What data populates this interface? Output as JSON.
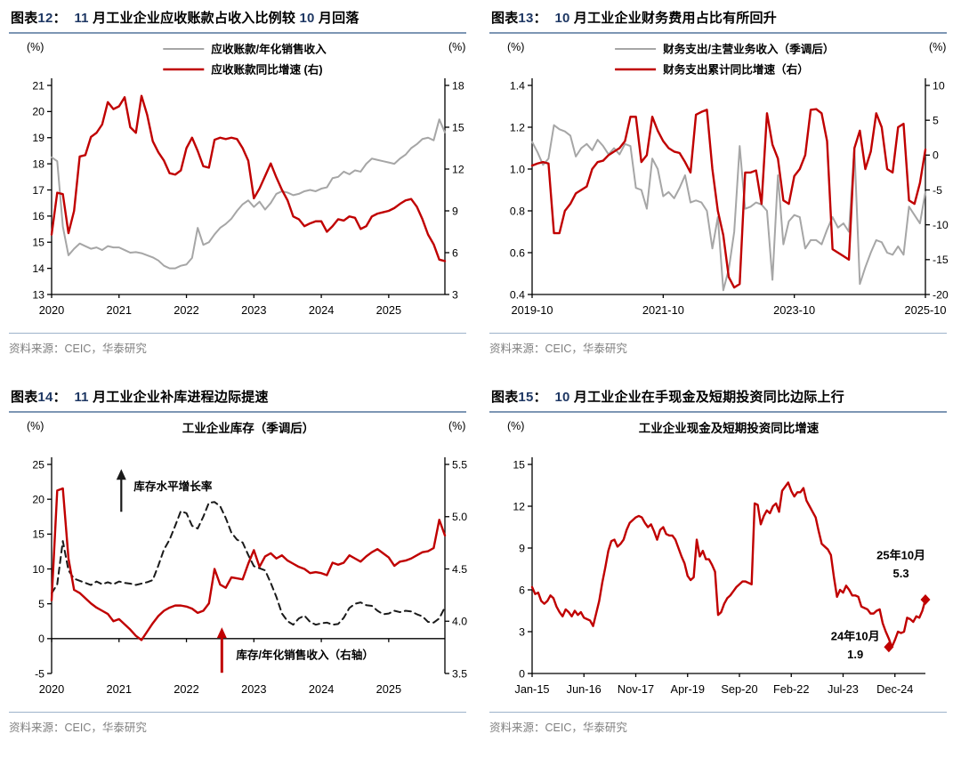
{
  "colors": {
    "red": "#c00000",
    "gray": "#a6a6a6",
    "dash_black": "#1a1a1a",
    "axis_black": "#000000",
    "title_number_blue": "#1f3864",
    "title_rule_blue": "#7d96b4",
    "source_rule_blue": "#9db2ca",
    "source_gray": "#7f7f7f"
  },
  "figures": [
    {
      "title": "图表12：  11 月工业企业应收账款占收入比例较 10 月回落",
      "source": "资料来源：CEIC，华泰研究"
    },
    {
      "title": "图表13：  10 月工业企业财务费用占比有所回升",
      "source": "资料来源：CEIC，华泰研究"
    },
    {
      "title": "图表14：  11 月工业企业补库进程边际提速",
      "source": "资料来源：CEIC，华泰研究"
    },
    {
      "title": "图表15：  10 月工业企业在手现金及短期投资同比边际上行",
      "source": "资料来源：CEIC，华泰研究"
    }
  ],
  "chart_data": [
    {
      "type": "line",
      "title": "11 月工业企业应收账款占收入比例较 10 月回落",
      "inner_title": "",
      "left_unit": "(%)",
      "right_unit": "(%)",
      "show_legend": true,
      "legend_position": "top-center",
      "left_axis": {
        "min": 13,
        "max": 21,
        "ticks": [
          13,
          14,
          15,
          16,
          17,
          18,
          19,
          20,
          21
        ],
        "labels": [
          "13",
          "14",
          "15",
          "16",
          "17",
          "18",
          "19",
          "20",
          "21"
        ]
      },
      "right_axis": {
        "min": 3,
        "max": 18,
        "ticks": [
          3,
          6,
          9,
          12,
          15,
          18
        ],
        "labels": [
          "3",
          "6",
          "9",
          "12",
          "15",
          "18"
        ]
      },
      "x_axis": {
        "min": 0,
        "max": 70,
        "baseline": 13,
        "tick_positions": [
          0,
          12,
          24,
          36,
          48,
          60
        ],
        "tick_labels": [
          "2020",
          "2021",
          "2022",
          "2023",
          "2024",
          "2025"
        ]
      },
      "series": [
        {
          "id": "receivables-to-sales-line",
          "name": "应收账款/年化销售收入",
          "axis": "left",
          "color": "gray",
          "width": 2,
          "dash": "",
          "values": [
            18.25,
            18.1,
            15.6,
            14.5,
            14.75,
            14.95,
            14.85,
            14.75,
            14.8,
            14.7,
            14.85,
            14.8,
            14.8,
            14.7,
            14.6,
            14.62,
            14.58,
            14.5,
            14.42,
            14.3,
            14.1,
            14.0,
            14.0,
            14.1,
            14.15,
            14.4,
            15.55,
            14.9,
            15.0,
            15.3,
            15.55,
            15.7,
            15.9,
            16.2,
            16.45,
            16.6,
            16.35,
            16.55,
            16.25,
            16.5,
            16.85,
            16.95,
            16.9,
            16.8,
            16.85,
            16.95,
            17.0,
            16.95,
            17.05,
            17.1,
            17.45,
            17.5,
            17.7,
            17.6,
            17.75,
            17.7,
            18.0,
            18.2,
            18.15,
            18.1,
            18.05,
            18.0,
            18.2,
            18.35,
            18.6,
            18.75,
            18.95,
            19.0,
            18.9,
            19.7,
            19.2
          ]
        },
        {
          "id": "receivables-yoy-line",
          "name": "应收账款同比增速 (右)",
          "axis": "right",
          "color": "red",
          "width": 2.4,
          "dash": "",
          "values": [
            7.3,
            10.3,
            10.2,
            7.4,
            9.0,
            12.9,
            13.0,
            14.3,
            14.6,
            15.2,
            16.8,
            16.3,
            16.5,
            17.15,
            15.0,
            14.6,
            17.25,
            15.9,
            14.0,
            13.2,
            12.6,
            11.7,
            11.6,
            11.9,
            13.5,
            14.25,
            13.3,
            12.2,
            12.1,
            14.1,
            14.25,
            14.15,
            14.25,
            14.15,
            13.5,
            12.6,
            9.9,
            10.6,
            11.5,
            12.4,
            11.4,
            10.5,
            9.75,
            8.6,
            8.4,
            7.9,
            8.1,
            8.25,
            8.25,
            7.5,
            7.9,
            8.4,
            8.3,
            8.6,
            8.5,
            7.7,
            7.9,
            8.6,
            8.8,
            8.9,
            9.0,
            9.2,
            9.5,
            9.75,
            9.85,
            9.3,
            8.4,
            7.3,
            6.6,
            5.5,
            5.4
          ]
        }
      ],
      "annotations": []
    },
    {
      "type": "line",
      "title": "10 月工业企业财务费用占比有所回升",
      "inner_title": "",
      "left_unit": "(%)",
      "right_unit": "(%)",
      "show_legend": true,
      "legend_position": "top-center",
      "left_axis": {
        "min": 0.4,
        "max": 1.4,
        "ticks": [
          0.4,
          0.6,
          0.8,
          1.0,
          1.2,
          1.4
        ],
        "labels": [
          "0.4",
          "0.6",
          "0.8",
          "1.0",
          "1.2",
          "1.4"
        ]
      },
      "right_axis": {
        "min": -20,
        "max": 10,
        "ticks": [
          -20,
          -15,
          -10,
          -5,
          0,
          5,
          10
        ],
        "labels": [
          "-20",
          "-15",
          "-10",
          "-5",
          "0",
          "5",
          "10"
        ]
      },
      "x_axis": {
        "min": 0,
        "max": 72,
        "baseline": 0.4,
        "tick_positions": [
          0,
          24,
          48,
          72
        ],
        "tick_labels": [
          "2019-10",
          "2021-10",
          "2023-10",
          "2025-10"
        ]
      },
      "series": [
        {
          "id": "finance-expense-ratio-line",
          "name": "财务支出/主营业务收入（季调后）",
          "axis": "left",
          "color": "gray",
          "width": 2,
          "dash": "",
          "values": [
            1.13,
            1.08,
            1.02,
            1.05,
            1.21,
            1.19,
            1.18,
            1.16,
            1.06,
            1.1,
            1.12,
            1.09,
            1.14,
            1.11,
            1.07,
            1.1,
            1.07,
            1.12,
            1.11,
            0.91,
            0.9,
            0.81,
            1.05,
            1.0,
            0.87,
            0.89,
            0.86,
            0.91,
            0.97,
            0.84,
            0.85,
            0.84,
            0.8,
            0.62,
            0.77,
            0.42,
            0.52,
            0.7,
            1.11,
            0.81,
            0.82,
            0.84,
            0.83,
            0.8,
            0.47,
            0.97,
            0.64,
            0.75,
            0.78,
            0.77,
            0.62,
            0.66,
            0.66,
            0.64,
            0.71,
            0.77,
            0.72,
            0.74,
            0.7,
            1.1,
            0.45,
            0.53,
            0.6,
            0.66,
            0.65,
            0.6,
            0.59,
            0.63,
            0.59,
            0.82,
            0.78,
            0.74,
            0.89
          ]
        },
        {
          "id": "finance-expense-yoy-line",
          "name": "财务支出累计同比增速（右）",
          "axis": "right",
          "color": "red",
          "width": 2.4,
          "dash": "",
          "values": [
            -1.5,
            -1.2,
            -1.0,
            -1.2,
            -11.2,
            -11.2,
            -8,
            -7,
            -5.5,
            -5,
            -4.5,
            -2,
            -1,
            -0.8,
            0,
            0.5,
            1,
            2,
            5.5,
            5.5,
            -1,
            0,
            5.5,
            3.5,
            2,
            1,
            0.5,
            0.3,
            -1,
            -2.5,
            5.8,
            6.2,
            6.5,
            -2,
            -8,
            -11.5,
            -17.5,
            -19,
            -18.5,
            -2.5,
            -2.5,
            -2.2,
            -7,
            6,
            1.5,
            -0.5,
            -6.5,
            -7,
            -3,
            -2,
            0,
            6.5,
            6.6,
            6,
            2,
            -13.5,
            -14,
            -14.5,
            -15,
            1,
            3.5,
            -2,
            0.5,
            6,
            4,
            -2,
            -2.5,
            4,
            4.5,
            -6.5,
            -7,
            -4,
            0.8
          ]
        }
      ],
      "annotations": []
    },
    {
      "type": "line",
      "title": "11 月工业企业补库进程边际提速",
      "inner_title": "工业企业库存（季调后）",
      "left_unit": "(%)",
      "right_unit": "(%)",
      "show_legend": false,
      "legend_position": "none",
      "left_axis": {
        "min": -5,
        "max": 25,
        "ticks": [
          -5,
          0,
          5,
          10,
          15,
          20,
          25
        ],
        "labels": [
          "-5",
          "0",
          "5",
          "10",
          "15",
          "20",
          "25"
        ]
      },
      "right_axis": {
        "min": 3.5,
        "max": 5.5,
        "ticks": [
          3.5,
          4.0,
          4.5,
          5.0,
          5.5
        ],
        "labels": [
          "3.5",
          "4.0",
          "4.5",
          "5.0",
          "5.5"
        ]
      },
      "x_axis": {
        "min": 0,
        "max": 70,
        "baseline": 0,
        "tick_positions": [
          0,
          12,
          24,
          36,
          48,
          60
        ],
        "tick_labels": [
          "2020",
          "2021",
          "2022",
          "2023",
          "2024",
          "2025"
        ]
      },
      "series": [
        {
          "id": "inventory-growth-line",
          "name": "库存水平增长率",
          "axis": "left",
          "color": "dash_black",
          "width": 2,
          "dash": "7,5",
          "values": [
            6.5,
            7.8,
            14.0,
            9.8,
            8.6,
            8.3,
            8.0,
            7.7,
            8.2,
            7.8,
            8.1,
            7.8,
            8.2,
            8.0,
            7.9,
            7.7,
            7.9,
            8.1,
            8.4,
            10.5,
            12.8,
            14.2,
            16.2,
            18.3,
            18.0,
            16.2,
            15.8,
            17.5,
            19.5,
            19.6,
            19.0,
            17.3,
            15.2,
            14.2,
            13.8,
            12.0,
            10.4,
            10.1,
            9.8,
            8.0,
            6.0,
            3.6,
            2.5,
            2.0,
            2.9,
            3.3,
            2.4,
            2.0,
            2.2,
            2.3,
            2.0,
            2.1,
            3.0,
            4.4,
            5.0,
            5.2,
            4.8,
            4.7,
            4.0,
            3.5,
            3.6,
            4.0,
            3.8,
            4.0,
            3.9,
            3.5,
            3.2,
            2.4,
            2.3,
            2.9,
            4.5
          ]
        },
        {
          "id": "inventory-to-sales-line",
          "name": "库存/年化销售收入（右轴）",
          "axis": "right",
          "color": "red",
          "width": 2.4,
          "dash": "",
          "values": [
            4.2,
            5.25,
            5.27,
            4.6,
            4.3,
            4.27,
            4.22,
            4.17,
            4.13,
            4.1,
            4.07,
            4.0,
            4.02,
            3.97,
            3.92,
            3.86,
            3.82,
            3.9,
            3.98,
            4.05,
            4.1,
            4.13,
            4.15,
            4.15,
            4.14,
            4.12,
            4.08,
            4.1,
            4.17,
            4.5,
            4.35,
            4.32,
            4.42,
            4.41,
            4.4,
            4.55,
            4.68,
            4.52,
            4.62,
            4.65,
            4.6,
            4.63,
            4.58,
            4.55,
            4.52,
            4.5,
            4.46,
            4.47,
            4.46,
            4.44,
            4.56,
            4.54,
            4.56,
            4.63,
            4.6,
            4.57,
            4.62,
            4.66,
            4.69,
            4.65,
            4.61,
            4.53,
            4.57,
            4.58,
            4.6,
            4.63,
            4.66,
            4.67,
            4.7,
            4.97,
            4.82
          ]
        }
      ],
      "annotations": [
        {
          "type": "arrow",
          "color": "dash_black",
          "x": 12.4,
          "y_from": 18.2,
          "y_to": 24.2,
          "width": 2.2,
          "label": "库存水平增长率",
          "label_dx": 14,
          "label_y": 21.3,
          "bold": false
        },
        {
          "type": "arrow",
          "color": "red",
          "x": 30.3,
          "y_from": -4.9,
          "y_to": 1.5,
          "width": 3,
          "label": "库存/年化销售收入（右轴）",
          "label_dx": 16,
          "label_y": -2.9,
          "bold": true
        }
      ]
    },
    {
      "type": "line",
      "title": "10 月工业企业在手现金及短期投资同比边际上行",
      "inner_title": "工业企业现金及短期投资同比增速",
      "left_unit": "(%)",
      "right_unit": "",
      "show_legend": false,
      "legend_position": "none",
      "left_axis": {
        "min": 0,
        "max": 15,
        "ticks": [
          0,
          3,
          6,
          9,
          12,
          15
        ],
        "labels": [
          "0",
          "3",
          "6",
          "9",
          "12",
          "15"
        ]
      },
      "right_axis": null,
      "x_axis": {
        "min": 0,
        "max": 129,
        "baseline": 0,
        "tick_positions": [
          0,
          17,
          34,
          51,
          68,
          85,
          102,
          119
        ],
        "tick_labels": [
          "Jan-15",
          "Jun-16",
          "Nov-17",
          "Apr-19",
          "Sep-20",
          "Feb-22",
          "Jul-23",
          "Dec-24"
        ]
      },
      "series": [
        {
          "id": "cash-investment-yoy-line",
          "name": "工业企业现金及短期投资同比增速",
          "axis": "left",
          "color": "red",
          "width": 2.4,
          "dash": "",
          "values": [
            6.2,
            5.7,
            5.8,
            5.2,
            5.0,
            5.2,
            5.6,
            5.4,
            4.8,
            4.4,
            4.1,
            4.6,
            4.4,
            4.1,
            4.5,
            4.2,
            4.4,
            4.0,
            3.9,
            3.8,
            3.4,
            4.3,
            5.2,
            6.5,
            7.6,
            8.8,
            9.5,
            9.6,
            9.1,
            9.3,
            9.6,
            10.3,
            10.8,
            11.0,
            11.2,
            11.3,
            11.2,
            10.8,
            10.5,
            10.7,
            10.2,
            9.6,
            10.3,
            10.5,
            10.0,
            9.9,
            9.9,
            9.6,
            9.0,
            8.4,
            7.9,
            7.0,
            6.7,
            6.9,
            9.6,
            8.4,
            8.8,
            8.2,
            8.2,
            7.8,
            7.3,
            4.2,
            4.4,
            5.0,
            5.4,
            5.6,
            5.9,
            6.2,
            6.4,
            6.6,
            6.6,
            6.5,
            6.4,
            12.2,
            12.1,
            10.7,
            11.3,
            11.7,
            11.5,
            12.0,
            12.2,
            11.6,
            13.1,
            13.4,
            13.7,
            13.1,
            12.7,
            13.0,
            13.0,
            13.3,
            12.4,
            12.0,
            11.6,
            11.2,
            10.2,
            9.3,
            9.1,
            8.9,
            8.5,
            6.9,
            5.5,
            6.0,
            5.8,
            6.3,
            6.0,
            5.6,
            5.6,
            5.5,
            4.8,
            4.7,
            4.6,
            4.3,
            4.3,
            4.5,
            4.6,
            3.6,
            3.0,
            2.5,
            1.9,
            2.4,
            3.0,
            2.9,
            3.0,
            4.0,
            3.9,
            3.7,
            4.1,
            4.0,
            4.5,
            5.3
          ]
        }
      ],
      "annotations": [
        {
          "type": "label",
          "color": "red",
          "bold": true,
          "x": 121,
          "y_values": [
            8.2,
            6.9
          ],
          "lines": [
            "25年10月",
            "5.3"
          ]
        },
        {
          "type": "label",
          "color": "red",
          "bold": true,
          "x": 106,
          "y_values": [
            2.4,
            1.1
          ],
          "lines": [
            "24年10月",
            "1.9"
          ]
        },
        {
          "type": "marker",
          "color": "red",
          "shape": "diamond",
          "x": 117,
          "y": 1.9
        },
        {
          "type": "marker",
          "color": "red",
          "shape": "diamond",
          "x": 129,
          "y": 5.3
        }
      ]
    }
  ]
}
